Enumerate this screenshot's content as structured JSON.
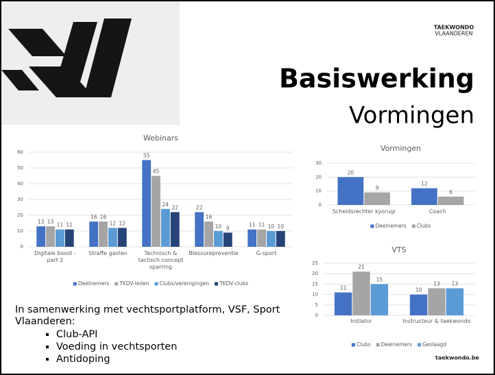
{
  "slide": {
    "logo": [
      "TAEKWONDO",
      "VLAANDEREN"
    ],
    "title": "Basiswerking",
    "subtitle": "Vormingen",
    "intro": "In samenwerking met vechtsportplatform, VSF, Sport Vlaanderen:",
    "bullets": [
      "Club-API",
      "Voeding in vechtsporten",
      "Antidoping"
    ],
    "footer": "taekwondo.be"
  },
  "chart_data": [
    {
      "type": "bar",
      "title": "Webinars",
      "categories": [
        "Digitale boost - part 2",
        "Straffe gasten",
        "Technisch & tactisch concept sparring",
        "Blessurepreventie",
        "G-sport"
      ],
      "series": [
        {
          "name": "Deelnemers",
          "color": "#4472c4",
          "values": [
            13,
            16,
            55,
            22,
            11
          ]
        },
        {
          "name": "TKDV-leden",
          "color": "#a5a5a5",
          "values": [
            13,
            16,
            45,
            16,
            11
          ]
        },
        {
          "name": "Clubs/verenigingen",
          "color": "#5b9bd5",
          "values": [
            11,
            12,
            24,
            10,
            10
          ]
        },
        {
          "name": "TKDV-clubs",
          "color": "#264478",
          "values": [
            11,
            12,
            22,
            9,
            10
          ]
        }
      ],
      "ylim": [
        0,
        60
      ],
      "yticks": [
        0,
        10,
        20,
        30,
        40,
        50,
        60
      ],
      "grid": true,
      "legend": "bottom"
    },
    {
      "type": "bar",
      "title": "Vormingen",
      "categories": [
        "Scheidsrechter kyorugi",
        "Coach"
      ],
      "series": [
        {
          "name": "Deelnemers",
          "color": "#4472c4",
          "values": [
            20,
            12
          ]
        },
        {
          "name": "Clubs",
          "color": "#a5a5a5",
          "values": [
            9,
            6
          ]
        }
      ],
      "ylim": [
        0,
        30
      ],
      "yticks": [
        0,
        10,
        20,
        30
      ],
      "grid": true,
      "legend": "bottom"
    },
    {
      "type": "bar",
      "title": "VTS",
      "categories": [
        "Initiator",
        "Instructeur & taekwondo"
      ],
      "series": [
        {
          "name": "Clubs",
          "color": "#4472c4",
          "values": [
            11,
            10
          ]
        },
        {
          "name": "Deelnemers",
          "color": "#a5a5a5",
          "values": [
            21,
            13
          ]
        },
        {
          "name": "Geslaagd",
          "color": "#5b9bd5",
          "values": [
            15,
            13
          ]
        }
      ],
      "ylim": [
        0,
        25
      ],
      "yticks": [
        0,
        5,
        10,
        15,
        20,
        25
      ],
      "grid": true,
      "legend": "bottom"
    }
  ]
}
